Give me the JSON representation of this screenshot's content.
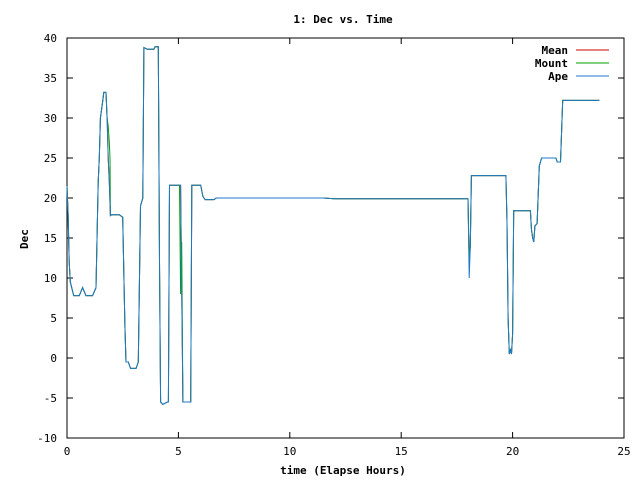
{
  "chart_data": {
    "type": "line",
    "title": "1: Dec vs. Time",
    "xlabel": "time (Elapse Hours)",
    "ylabel": "Dec",
    "xlim": [
      0,
      25
    ],
    "ylim": [
      -10,
      40
    ],
    "xticks": [
      0,
      5,
      10,
      15,
      20,
      25
    ],
    "yticks": [
      -10,
      -5,
      0,
      5,
      10,
      15,
      20,
      25,
      30,
      35,
      40
    ],
    "grid": false,
    "legend": "top-right",
    "series": [
      {
        "name": "Mean",
        "color": "#cc0000",
        "points": [
          [
            0,
            21.5
          ],
          [
            0.05,
            18
          ],
          [
            0.1,
            12
          ],
          [
            0.15,
            9.5
          ],
          [
            0.3,
            7.8
          ],
          [
            0.55,
            7.8
          ],
          [
            0.7,
            8.8
          ],
          [
            0.85,
            7.8
          ],
          [
            1.15,
            7.8
          ],
          [
            1.3,
            8.8
          ],
          [
            1.4,
            22
          ],
          [
            1.45,
            25
          ],
          [
            1.5,
            30
          ],
          [
            1.6,
            32
          ],
          [
            1.65,
            33.2
          ],
          [
            1.75,
            33.2
          ],
          [
            1.8,
            30
          ],
          [
            1.85,
            25
          ],
          [
            1.9,
            22
          ],
          [
            1.95,
            17.8
          ],
          [
            2.0,
            17.9
          ],
          [
            2.35,
            17.9
          ],
          [
            2.5,
            17.6
          ],
          [
            2.6,
            4
          ],
          [
            2.65,
            -0.5
          ],
          [
            2.75,
            -0.5
          ],
          [
            2.85,
            -1.3
          ],
          [
            3.1,
            -1.3
          ],
          [
            3.2,
            -0.5
          ],
          [
            3.3,
            19
          ],
          [
            3.4,
            20
          ],
          [
            3.45,
            38.8
          ],
          [
            3.6,
            38.6
          ],
          [
            3.9,
            38.6
          ],
          [
            3.95,
            38.9
          ],
          [
            4.1,
            38.9
          ],
          [
            4.15,
            12
          ],
          [
            4.2,
            -5.5
          ],
          [
            4.3,
            -5.8
          ],
          [
            4.5,
            -5.5
          ],
          [
            4.55,
            -5.5
          ],
          [
            4.6,
            21.6
          ],
          [
            5.1,
            21.6
          ],
          [
            5.2,
            -5.5
          ],
          [
            5.55,
            -5.5
          ],
          [
            5.6,
            21.6
          ],
          [
            6.0,
            21.6
          ],
          [
            6.1,
            20.2
          ],
          [
            6.2,
            19.8
          ],
          [
            6.6,
            19.8
          ],
          [
            6.7,
            20
          ],
          [
            11.5,
            20
          ],
          [
            12,
            19.9
          ],
          [
            18,
            19.9
          ],
          [
            18.05,
            12
          ],
          [
            18.1,
            14
          ],
          [
            18.15,
            22.8
          ],
          [
            19.7,
            22.8
          ],
          [
            19.75,
            17
          ],
          [
            19.8,
            5
          ],
          [
            19.85,
            0.5
          ],
          [
            19.9,
            1
          ],
          [
            19.95,
            0.5
          ],
          [
            20.0,
            3
          ],
          [
            20.05,
            18.4
          ],
          [
            20.8,
            18.4
          ],
          [
            20.85,
            16
          ],
          [
            20.9,
            15
          ],
          [
            20.95,
            14.5
          ],
          [
            21.0,
            16.5
          ],
          [
            21.1,
            16.8
          ],
          [
            21.2,
            24
          ],
          [
            21.3,
            25
          ],
          [
            21.95,
            25
          ],
          [
            22.0,
            24.5
          ],
          [
            22.15,
            24.5
          ],
          [
            22.25,
            32.2
          ],
          [
            23.9,
            32.2
          ]
        ]
      },
      {
        "name": "Mount",
        "color": "#00a000",
        "points": [
          [
            0,
            21.5
          ],
          [
            0.05,
            18
          ],
          [
            0.1,
            12
          ],
          [
            0.15,
            9.5
          ],
          [
            0.3,
            7.8
          ],
          [
            0.55,
            7.8
          ],
          [
            0.7,
            8.8
          ],
          [
            0.85,
            7.8
          ],
          [
            1.15,
            7.8
          ],
          [
            1.3,
            8.8
          ],
          [
            1.4,
            22
          ],
          [
            1.45,
            25
          ],
          [
            1.5,
            30
          ],
          [
            1.6,
            32
          ],
          [
            1.65,
            33.2
          ],
          [
            1.75,
            33.2
          ],
          [
            1.8,
            30
          ],
          [
            1.85,
            29
          ],
          [
            1.9,
            27
          ],
          [
            1.93,
            25
          ],
          [
            1.95,
            17.8
          ],
          [
            2.0,
            17.9
          ],
          [
            2.35,
            17.9
          ],
          [
            2.5,
            17.6
          ],
          [
            2.6,
            4
          ],
          [
            2.65,
            -0.5
          ],
          [
            2.75,
            -0.5
          ],
          [
            2.85,
            -1.3
          ],
          [
            3.1,
            -1.3
          ],
          [
            3.2,
            -0.5
          ],
          [
            3.3,
            19
          ],
          [
            3.4,
            20
          ],
          [
            3.45,
            38.8
          ],
          [
            3.6,
            38.6
          ],
          [
            3.9,
            38.6
          ],
          [
            3.95,
            38.9
          ],
          [
            4.1,
            38.9
          ],
          [
            4.15,
            12
          ],
          [
            4.2,
            -5.5
          ],
          [
            4.3,
            -5.8
          ],
          [
            4.5,
            -5.5
          ],
          [
            4.55,
            -5.5
          ],
          [
            4.6,
            21.6
          ],
          [
            5.05,
            21.6
          ],
          [
            5.1,
            8
          ],
          [
            5.15,
            14.5
          ],
          [
            5.2,
            -5.5
          ],
          [
            5.55,
            -5.5
          ],
          [
            5.6,
            21.6
          ],
          [
            6.0,
            21.6
          ],
          [
            6.1,
            20.2
          ],
          [
            6.2,
            19.8
          ],
          [
            6.6,
            19.8
          ],
          [
            6.7,
            20
          ],
          [
            11.5,
            20
          ],
          [
            12,
            19.9
          ],
          [
            18,
            19.9
          ],
          [
            18.05,
            12
          ],
          [
            18.1,
            14
          ],
          [
            18.15,
            22.8
          ],
          [
            19.7,
            22.8
          ],
          [
            19.75,
            17
          ],
          [
            19.8,
            5
          ],
          [
            19.85,
            0.5
          ],
          [
            19.9,
            1
          ],
          [
            19.95,
            0.5
          ],
          [
            20.0,
            3
          ],
          [
            20.05,
            18.4
          ],
          [
            20.8,
            18.4
          ],
          [
            20.85,
            16
          ],
          [
            20.9,
            15
          ],
          [
            20.95,
            14.5
          ],
          [
            21.0,
            16.5
          ],
          [
            21.1,
            16.8
          ],
          [
            21.2,
            24
          ],
          [
            21.3,
            25
          ],
          [
            21.95,
            25
          ],
          [
            22.0,
            24.5
          ],
          [
            22.15,
            24.5
          ],
          [
            22.25,
            32.2
          ],
          [
            23.9,
            32.2
          ]
        ]
      },
      {
        "name": "Ape",
        "color": "#1e7ac8",
        "points": [
          [
            0,
            21.5
          ],
          [
            0.05,
            18
          ],
          [
            0.1,
            12
          ],
          [
            0.15,
            9.5
          ],
          [
            0.3,
            7.8
          ],
          [
            0.55,
            7.8
          ],
          [
            0.7,
            8.8
          ],
          [
            0.85,
            7.8
          ],
          [
            1.15,
            7.8
          ],
          [
            1.3,
            8.8
          ],
          [
            1.4,
            22
          ],
          [
            1.45,
            25
          ],
          [
            1.5,
            30
          ],
          [
            1.6,
            32
          ],
          [
            1.65,
            33.2
          ],
          [
            1.75,
            33.2
          ],
          [
            1.8,
            30
          ],
          [
            1.85,
            25
          ],
          [
            1.9,
            22
          ],
          [
            1.95,
            17.8
          ],
          [
            2.0,
            17.9
          ],
          [
            2.35,
            17.9
          ],
          [
            2.5,
            17.6
          ],
          [
            2.6,
            4
          ],
          [
            2.65,
            -0.5
          ],
          [
            2.75,
            -0.5
          ],
          [
            2.85,
            -1.3
          ],
          [
            3.1,
            -1.3
          ],
          [
            3.2,
            -0.5
          ],
          [
            3.3,
            19
          ],
          [
            3.4,
            20
          ],
          [
            3.45,
            38.8
          ],
          [
            3.6,
            38.6
          ],
          [
            3.9,
            38.6
          ],
          [
            3.95,
            38.9
          ],
          [
            4.1,
            38.9
          ],
          [
            4.15,
            12
          ],
          [
            4.2,
            -5.5
          ],
          [
            4.3,
            -5.8
          ],
          [
            4.5,
            -5.5
          ],
          [
            4.55,
            -5.5
          ],
          [
            4.6,
            21.6
          ],
          [
            5.1,
            21.6
          ],
          [
            5.2,
            -5.5
          ],
          [
            5.55,
            -5.5
          ],
          [
            5.6,
            21.6
          ],
          [
            6.0,
            21.6
          ],
          [
            6.1,
            20.2
          ],
          [
            6.2,
            19.8
          ],
          [
            6.6,
            19.8
          ],
          [
            6.7,
            20
          ],
          [
            11.5,
            20
          ],
          [
            12,
            19.9
          ],
          [
            18,
            19.9
          ],
          [
            18.05,
            10
          ],
          [
            18.1,
            14
          ],
          [
            18.15,
            22.8
          ],
          [
            19.7,
            22.8
          ],
          [
            19.75,
            17
          ],
          [
            19.8,
            5
          ],
          [
            19.85,
            0.5
          ],
          [
            19.9,
            1
          ],
          [
            19.95,
            0.5
          ],
          [
            20.0,
            3
          ],
          [
            20.05,
            18.4
          ],
          [
            20.8,
            18.4
          ],
          [
            20.85,
            16
          ],
          [
            20.9,
            15
          ],
          [
            20.95,
            14.5
          ],
          [
            21.0,
            16.5
          ],
          [
            21.1,
            16.8
          ],
          [
            21.2,
            24
          ],
          [
            21.3,
            25
          ],
          [
            21.95,
            25
          ],
          [
            22.0,
            24.5
          ],
          [
            22.15,
            24.5
          ],
          [
            22.25,
            32.2
          ],
          [
            23.9,
            32.2
          ]
        ]
      }
    ]
  }
}
